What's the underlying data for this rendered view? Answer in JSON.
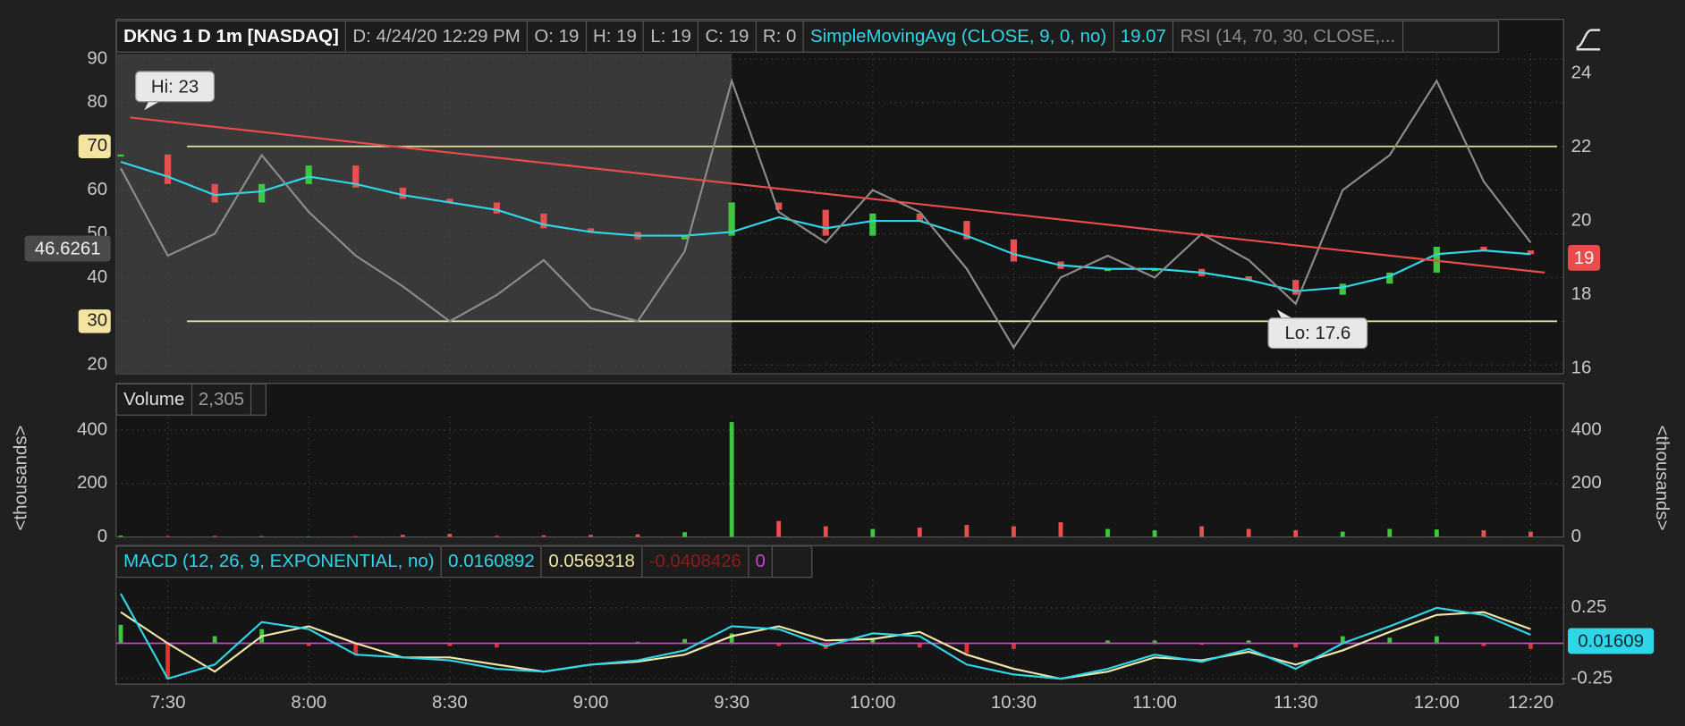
{
  "chart_data": {
    "title": "DKNG 1 D 1m [NASDAQ]",
    "x": [
      "7:20",
      "7:30",
      "7:40",
      "7:50",
      "8:00",
      "8:10",
      "8:20",
      "8:30",
      "8:40",
      "8:50",
      "9:00",
      "9:10",
      "9:20",
      "9:30",
      "9:40",
      "9:50",
      "10:00",
      "10:10",
      "10:20",
      "10:30",
      "10:40",
      "10:50",
      "11:00",
      "11:10",
      "11:20",
      "11:30",
      "11:40",
      "11:50",
      "12:00",
      "12:10",
      "12:20"
    ],
    "xlim": [
      "7:19",
      "12:27"
    ],
    "xticks": [
      "7:30",
      "8:00",
      "8:30",
      "9:00",
      "9:30",
      "10:00",
      "10:30",
      "11:00",
      "11:30",
      "12:00",
      "12:20"
    ],
    "grid": true,
    "panels": [
      {
        "type": "line",
        "header": [
          "D: 4/24/20 12:29 PM",
          "O: 19",
          "H: 19",
          "L: 19",
          "C: 19",
          "R: 0"
        ],
        "title_color": "#ffffff",
        "ylim": [
          18,
          91.2
        ],
        "yticks": [
          20,
          30,
          40,
          50,
          60,
          70,
          80,
          90
        ],
        "y2lim": [
          15.86,
          24.53
        ],
        "y2ticks": [
          16,
          18,
          20,
          22,
          24
        ],
        "tick_sides": [
          "left"
        ],
        "levels": [
          70,
          30
        ],
        "level_color": "#e6df98",
        "shade_until": "9:30",
        "series": [
          {
            "type": "price",
            "axis": "y2",
            "colors": [
              "#3ec63e",
              "#e85050"
            ],
            "values": [
              21.8,
              21.0,
              20.5,
              21.0,
              21.5,
              20.9,
              20.6,
              20.5,
              20.2,
              19.8,
              19.7,
              19.5,
              19.6,
              20.5,
              20.3,
              19.6,
              20.2,
              20.0,
              19.5,
              18.9,
              18.7,
              18.7,
              18.7,
              18.5,
              18.4,
              18.0,
              18.3,
              18.6,
              19.3,
              19.2,
              19.1
            ]
          },
          {
            "name": "SimpleMovingAvg (CLOSE, 9, 0, no)",
            "value_label": "19.07",
            "axis": "y2",
            "color": "#2fd6e8",
            "values": [
              21.6,
              21.2,
              20.7,
              20.8,
              21.2,
              21.0,
              20.7,
              20.5,
              20.3,
              19.9,
              19.7,
              19.6,
              19.6,
              19.7,
              20.1,
              19.8,
              20.0,
              20.0,
              19.6,
              19.1,
              18.8,
              18.7,
              18.7,
              18.6,
              18.4,
              18.1,
              18.2,
              18.5,
              19.1,
              19.2,
              19.1
            ]
          },
          {
            "name": "RSI (14, 70, 30, CLOSE,...",
            "color": "#8c8c8c",
            "values": [
              65,
              45,
              50,
              68,
              55,
              45,
              38,
              30,
              36,
              44,
              33,
              30,
              46,
              85,
              55,
              48,
              60,
              55,
              42,
              24,
              40,
              45,
              40,
              50,
              44,
              34,
              60,
              68,
              85,
              62,
              48
            ]
          }
        ],
        "trendline": {
          "color": "#e84c4c",
          "axis": "y2",
          "x": [
            "7:22",
            "12:23"
          ],
          "values": [
            22.8,
            18.6
          ]
        },
        "annotations": [
          {
            "text": "Hi: 23",
            "x": "7:25",
            "value": 23,
            "axis": "y2",
            "position": "above"
          },
          {
            "text": "Lo: 17.6",
            "x": "11:26",
            "value": 17.6,
            "axis": "y2",
            "position": "below"
          }
        ],
        "last_values": [
          {
            "value": 46.6261,
            "axis": "y",
            "side": "left",
            "color": "#4a4a4a"
          },
          {
            "value": 19,
            "axis": "y2",
            "side": "right",
            "color": "#e84c4c"
          }
        ]
      },
      {
        "type": "bar",
        "title": "Volume",
        "title_color": "#e0e0e0",
        "value_label": "2,305",
        "y_label": "<thousands>",
        "ylim": [
          0,
          450
        ],
        "yticks": [
          0,
          200,
          400
        ],
        "tick_sides": [
          "left",
          "right"
        ],
        "colors": [
          "#3ec63e",
          "#e85050"
        ],
        "values": [
          5,
          3,
          4,
          3,
          2,
          3,
          8,
          12,
          4,
          6,
          8,
          10,
          18,
          430,
          60,
          40,
          30,
          35,
          45,
          40,
          55,
          30,
          25,
          40,
          30,
          25,
          20,
          30,
          28,
          25,
          20
        ]
      },
      {
        "type": "line",
        "title": "MACD (12, 26, 9, EXPONENTIAL, no)",
        "title_color": "#2fd6e8",
        "ylim": [
          -0.288,
          0.447
        ],
        "yticks": [
          0.25,
          0,
          -0.25
        ],
        "tick_sides": [
          "right"
        ],
        "series": [
          {
            "type": "bar",
            "value_label": "-0.0408426",
            "color": "#8a1c1c",
            "colors": [
              "#3ec63e",
              "#e03030"
            ],
            "values": [
              0.13,
              -0.25,
              0.05,
              0.1,
              -0.02,
              -0.08,
              0,
              -0.02,
              -0.03,
              0,
              0,
              0.01,
              0.03,
              0.07,
              -0.02,
              -0.04,
              0.04,
              -0.03,
              -0.07,
              -0.04,
              0,
              0.02,
              0.02,
              -0.01,
              0.02,
              -0.03,
              0.05,
              0.04,
              0.05,
              -0.02,
              -0.04
            ]
          },
          {
            "type": "hline",
            "value_label": "0",
            "color": "#d040d0",
            "value": 0
          },
          {
            "value_label": "0.0569318",
            "color": "#f0e6a8",
            "values": [
              0.22,
              0.0,
              -0.2,
              0.05,
              0.12,
              0.0,
              -0.1,
              -0.1,
              -0.15,
              -0.2,
              -0.15,
              -0.13,
              -0.08,
              0.05,
              0.12,
              0.02,
              0.03,
              0.08,
              -0.08,
              -0.18,
              -0.25,
              -0.2,
              -0.1,
              -0.12,
              -0.06,
              -0.15,
              -0.05,
              0.08,
              0.2,
              0.22,
              0.1
            ]
          },
          {
            "value_label": "0.0160892",
            "color": "#2fd6e8",
            "values": [
              0.35,
              -0.25,
              -0.15,
              0.15,
              0.1,
              -0.08,
              -0.1,
              -0.12,
              -0.18,
              -0.2,
              -0.15,
              -0.12,
              -0.05,
              0.12,
              0.1,
              -0.02,
              0.07,
              0.05,
              -0.15,
              -0.22,
              -0.25,
              -0.18,
              -0.08,
              -0.13,
              -0.04,
              -0.18,
              0.0,
              0.12,
              0.25,
              0.2,
              0.06
            ]
          }
        ],
        "last_values": [
          {
            "value": 0.01609,
            "axis": "y",
            "side": "right",
            "color": "#2fd6e8"
          }
        ]
      }
    ]
  }
}
